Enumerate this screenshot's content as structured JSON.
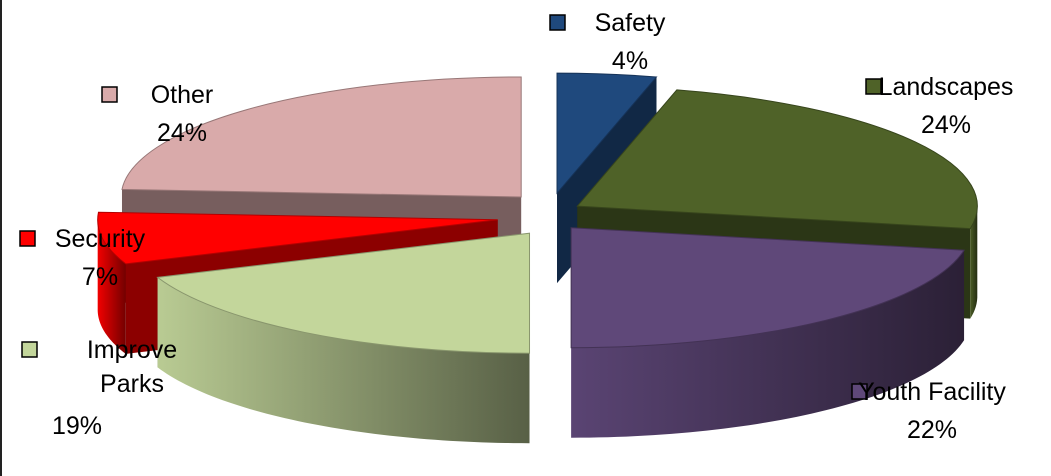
{
  "chart_data": {
    "type": "pie",
    "style": "3d-exploded",
    "title": "",
    "legend": "inline-labels",
    "slices": [
      {
        "label": "Safety",
        "value": 4,
        "value_label": "4%",
        "color": "#1f497d"
      },
      {
        "label": "Landscapes",
        "value": 24,
        "value_label": "24%",
        "color": "#4f6228"
      },
      {
        "label": "Youth Facility",
        "value": 22,
        "value_label": "22%",
        "color": "#5f4879"
      },
      {
        "label": "Improve Parks",
        "value": 19,
        "value_label": "19%",
        "color": "#c3d69b"
      },
      {
        "label": "Security",
        "value": 7,
        "value_label": "7%",
        "color": "#ff0000"
      },
      {
        "label": "Other",
        "value": 24,
        "value_label": "24%",
        "color": "#d9aaaa"
      }
    ]
  }
}
